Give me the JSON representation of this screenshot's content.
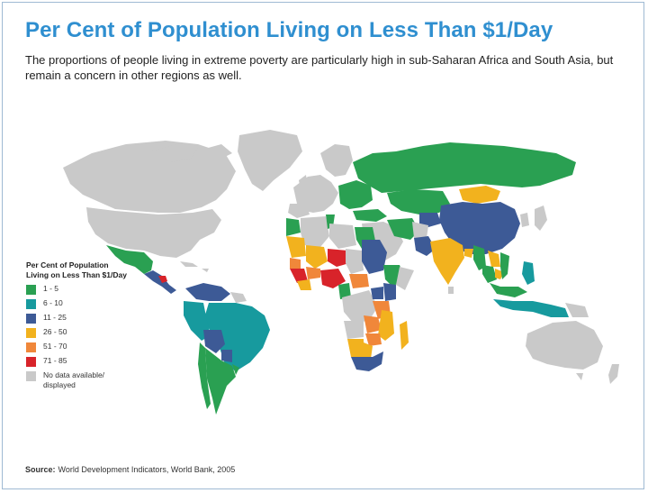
{
  "title": "Per Cent of Population Living on Less Than $1/Day",
  "subtitle": "The proportions of people living in extreme poverty are particularly high in sub-Saharan Africa and South Asia, but remain a concern in other regions as well.",
  "legend": {
    "title_line1": "Per Cent of Population",
    "title_line2": "Living on Less Than $1/Day",
    "items": [
      {
        "label": "1 - 5",
        "color": "#2aa052"
      },
      {
        "label": "6 - 10",
        "color": "#179a9e"
      },
      {
        "label": "11 - 25",
        "color": "#3d5a96"
      },
      {
        "label": "26 - 50",
        "color": "#f2b21e"
      },
      {
        "label": "51 - 70",
        "color": "#f0873a"
      },
      {
        "label": "71 - 85",
        "color": "#d8232a"
      },
      {
        "label": "No data available/",
        "label2": "displayed",
        "color": "#c9c9c9"
      }
    ]
  },
  "source_label": "Source:",
  "source_text": "World Development Indicators, World Bank, 2005",
  "colors": {
    "title": "#2f8fd0",
    "border": "#9fbad3",
    "nodata": "#c9c9c9",
    "green": "#2aa052",
    "teal": "#179a9e",
    "navy": "#3d5a96",
    "yellow": "#f2b21e",
    "orange": "#f0873a",
    "red": "#d8232a"
  }
}
